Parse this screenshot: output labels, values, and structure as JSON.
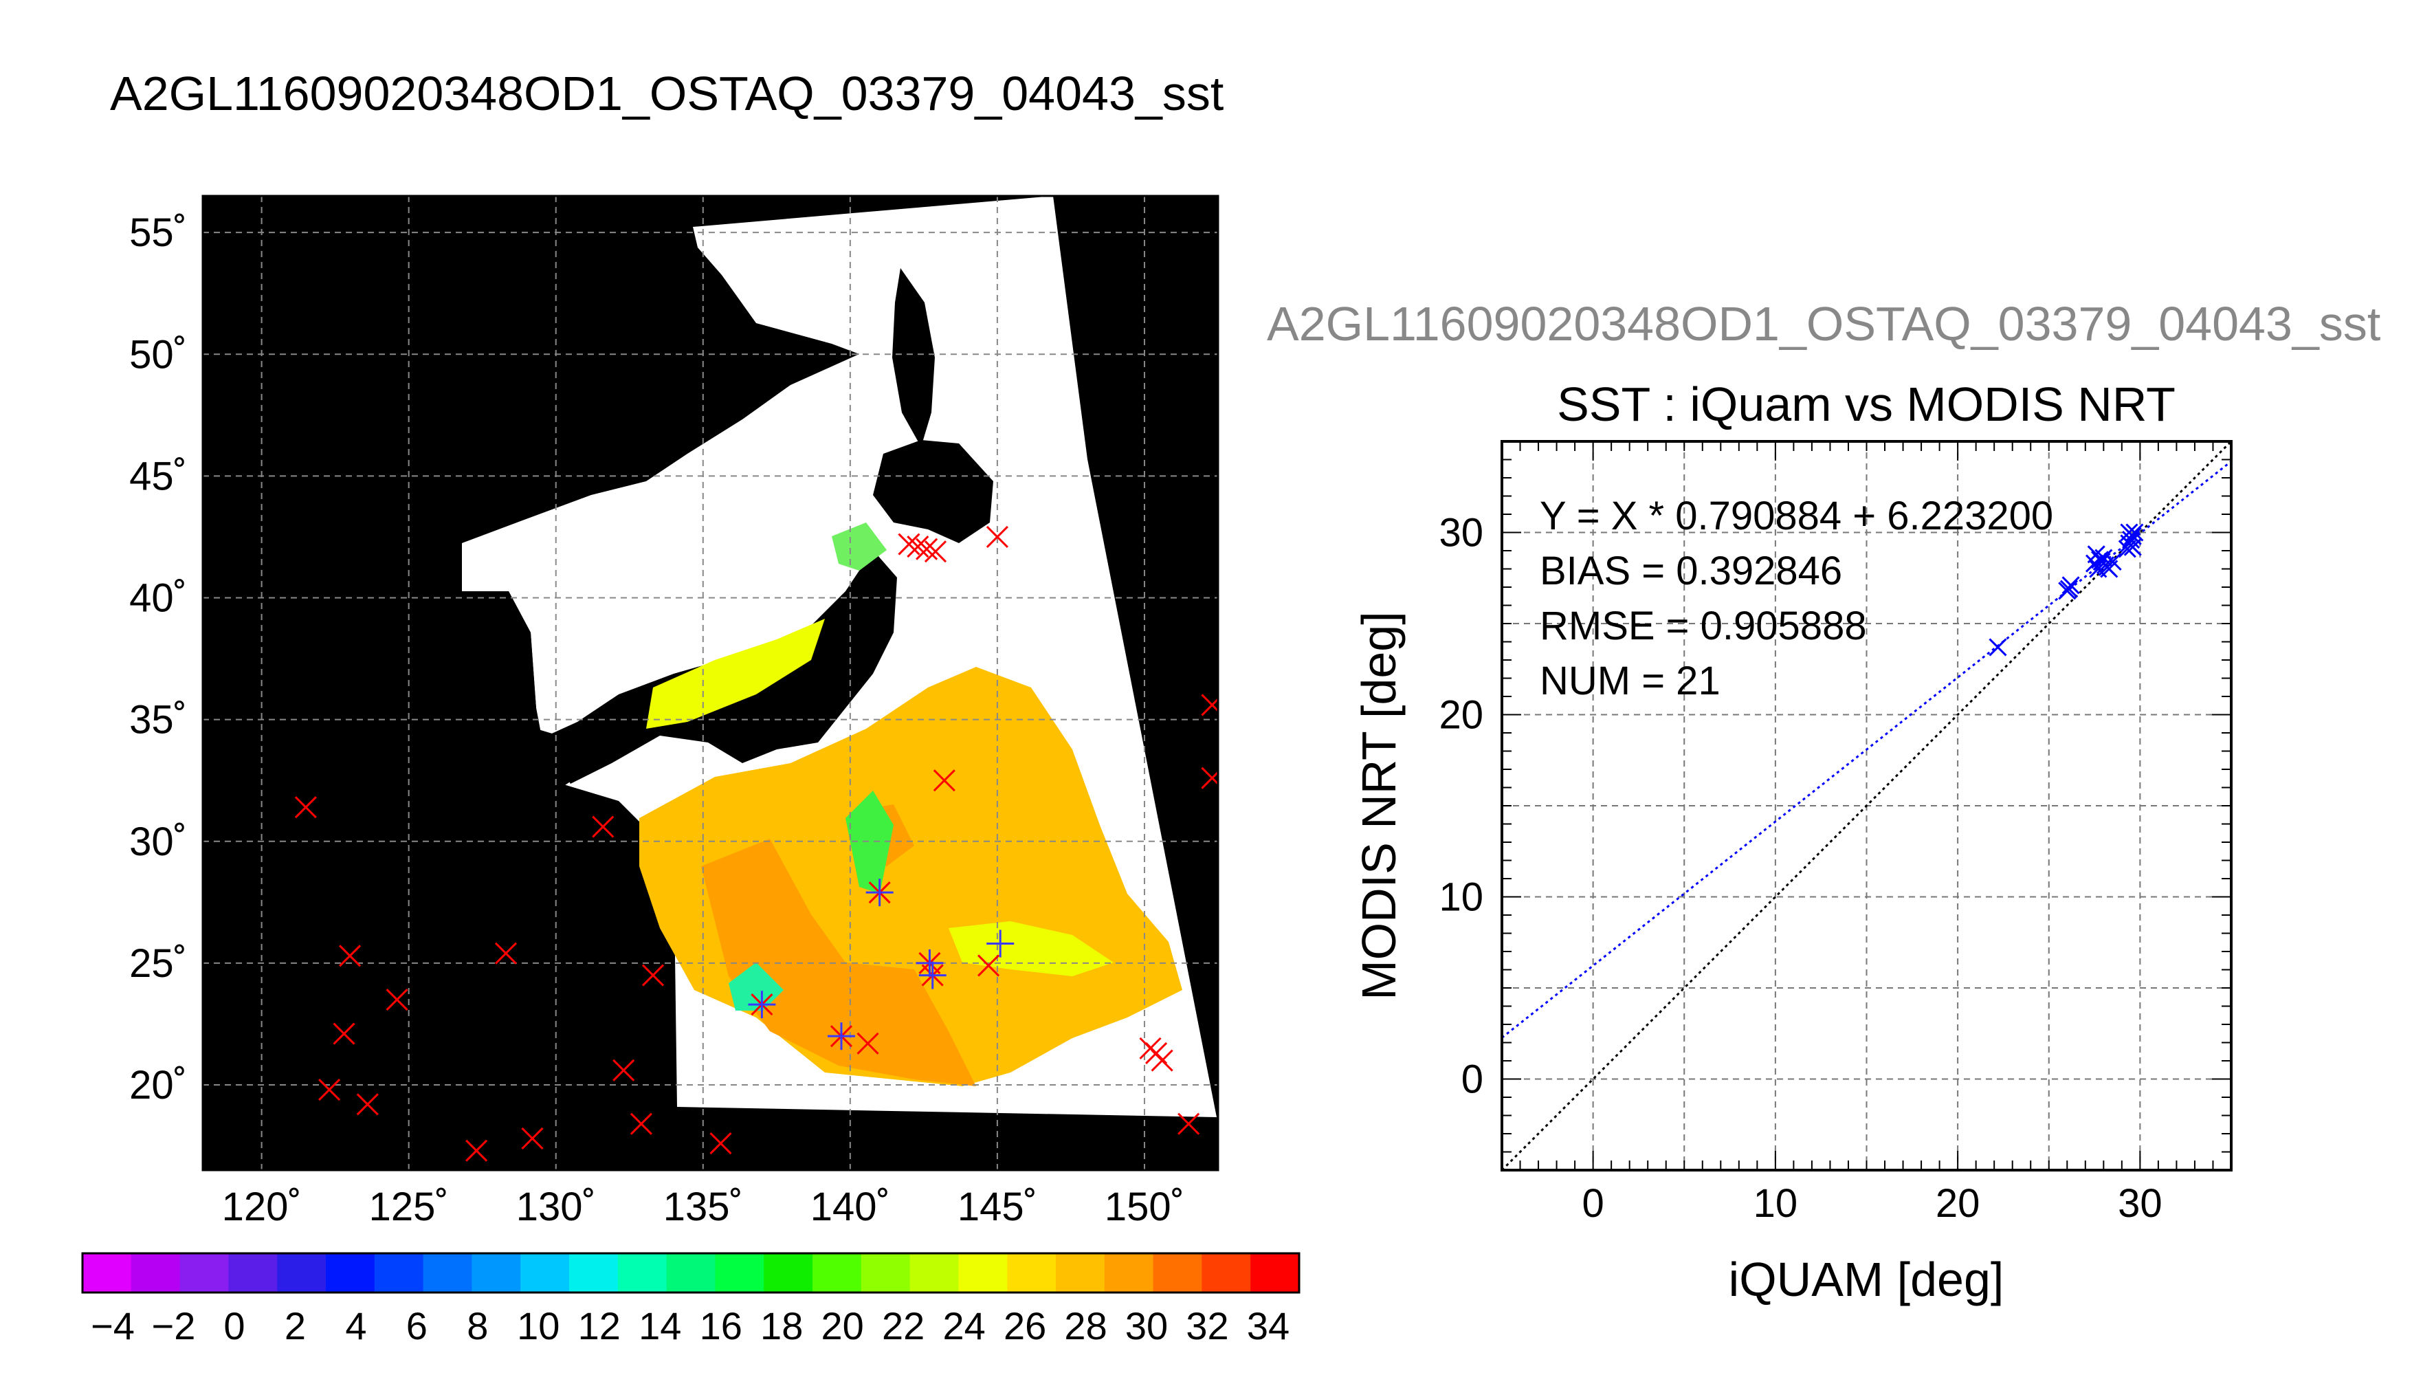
{
  "figure": {
    "title": "A2GL11609020348OD1_OSTAQ_03379_04043_sst",
    "scatter_super_title": "A2GL11609020348OD1_OSTAQ_03379_04043_sst",
    "colors": {
      "land": "#000000",
      "cloud": "#ffffff",
      "matchup_marker": "#ff0000",
      "modis_marker": "#3a3aff",
      "regression_line": "#0000ff",
      "identity_line": "#000000",
      "grid": "#888888"
    }
  },
  "map": {
    "lat_tick_labels": [
      "55˚",
      "50˚",
      "45˚",
      "40˚",
      "35˚",
      "30˚",
      "25˚",
      "20˚"
    ],
    "lon_tick_labels": [
      "120˚",
      "125˚",
      "130˚",
      "135˚",
      "140˚",
      "145˚",
      "150˚"
    ]
  },
  "colorbar": {
    "tick_labels": [
      "−4",
      "−2",
      "0",
      "2",
      "4",
      "6",
      "8",
      "10",
      "12",
      "14",
      "16",
      "18",
      "20",
      "22",
      "24",
      "26",
      "28",
      "30",
      "32",
      "34"
    ],
    "colors": [
      "#e000ff",
      "#b600f4",
      "#8a1df0",
      "#5a1ee8",
      "#2a1ee8",
      "#0018ff",
      "#0040ff",
      "#0070ff",
      "#0098ff",
      "#00c8ff",
      "#00f0ee",
      "#00ffb0",
      "#00f878",
      "#00ff40",
      "#10ee00",
      "#50ff00",
      "#90ff00",
      "#c0ff00",
      "#eeff00",
      "#ffdd00",
      "#ffc000",
      "#ffa000",
      "#ff7000",
      "#ff4000",
      "#ff0000"
    ]
  },
  "scatter": {
    "title": "SST : iQuam vs MODIS NRT",
    "xlabel": "iQUAM [deg]",
    "ylabel": "MODIS NRT [deg]",
    "x_tick_labels": [
      "0",
      "10",
      "20",
      "30"
    ],
    "y_tick_labels": [
      "0",
      "10",
      "20",
      "30"
    ],
    "stats": [
      "Y = X * 0.790884 + 6.223200",
      "BIAS = 0.392846",
      "RMSE = 0.905888",
      "NUM = 21"
    ]
  },
  "chart_data": [
    {
      "type": "scatter",
      "title": "A2GL11609020348OD1_OSTAQ_03379_04043_sst",
      "subtype": "map",
      "xlim": [
        118,
        152.5
      ],
      "ylim": [
        16.5,
        56.5
      ],
      "x_ticks": [
        120,
        125,
        130,
        135,
        140,
        145,
        150
      ],
      "y_ticks": [
        20,
        25,
        30,
        35,
        40,
        45,
        50,
        55
      ],
      "grid": true,
      "series": [
        {
          "name": "",
          "color": "#ff0000",
          "marker": "x",
          "points": [
            [
              121.5,
              31.4
            ],
            [
              123,
              25.3
            ],
            [
              122.8,
              22.1
            ],
            [
              122.3,
              19.8
            ],
            [
              123.6,
              19.2
            ],
            [
              124.6,
              23.5
            ],
            [
              127.3,
              17.3
            ],
            [
              128.3,
              25.4
            ],
            [
              129.2,
              17.8
            ],
            [
              131.6,
              30.6
            ],
            [
              132.3,
              20.6
            ],
            [
              132.9,
              18.4
            ],
            [
              133.3,
              24.5
            ],
            [
              135.6,
              17.6
            ],
            [
              137,
              23.3
            ],
            [
              139.7,
              22.0
            ],
            [
              140.6,
              21.7
            ],
            [
              141,
              27.9
            ],
            [
              142.0,
              42.2
            ],
            [
              142.3,
              42.1
            ],
            [
              142.6,
              42.0
            ],
            [
              142.9,
              41.9
            ],
            [
              143.2,
              32.5
            ],
            [
              142.8,
              24.5
            ],
            [
              142.7,
              25.0
            ],
            [
              144.7,
              24.9
            ],
            [
              145.0,
              42.5
            ],
            [
              150.2,
              21.5
            ],
            [
              150.4,
              21.3
            ],
            [
              150.6,
              21.0
            ],
            [
              151.5,
              18.4
            ],
            [
              152.3,
              35.6
            ],
            [
              152.3,
              32.6
            ]
          ]
        },
        {
          "name": "",
          "color": "#3a3aff",
          "marker": "+",
          "points": [
            [
              137,
              23.3
            ],
            [
              139.7,
              22.0
            ],
            [
              141,
              27.9
            ],
            [
              142.8,
              24.5
            ],
            [
              142.7,
              25.0
            ],
            [
              145.1,
              25.8
            ]
          ]
        }
      ]
    },
    {
      "type": "scatter",
      "title": "SST : iQuam vs MODIS NRT",
      "xlabel": "iQUAM [deg]",
      "ylabel": "MODIS NRT [deg]",
      "xlim": [
        -5,
        35
      ],
      "ylim": [
        -5,
        35
      ],
      "x_ticks": [
        0,
        10,
        20,
        30
      ],
      "y_ticks": [
        0,
        10,
        20,
        30
      ],
      "grid": true,
      "series": [
        {
          "name": "",
          "color": "#0000ff",
          "marker": "x",
          "points": [
            [
              22.2,
              23.7
            ],
            [
              26,
              26.8
            ],
            [
              26.2,
              27.1
            ],
            [
              27.5,
              28.3
            ],
            [
              27.6,
              28.8
            ],
            [
              27.8,
              28.5
            ],
            [
              28.1,
              28.2
            ],
            [
              28.3,
              28.0
            ],
            [
              28.5,
              28.4
            ],
            [
              29.4,
              29.4
            ],
            [
              29.6,
              29.8
            ],
            [
              29.7,
              30.0
            ],
            [
              29.3,
              29.1
            ],
            [
              27.7,
              28.0
            ],
            [
              28.0,
              28.6
            ],
            [
              29.5,
              29.6
            ],
            [
              26.1,
              26.9
            ],
            [
              28.2,
              28.1
            ],
            [
              29.6,
              29.2
            ],
            [
              27.9,
              28.4
            ],
            [
              29.4,
              30.0
            ]
          ]
        }
      ],
      "lines": [
        {
          "kind": "regression",
          "slope": 0.790884,
          "intercept": 6.2232,
          "color": "#0000ff",
          "style": "dotted"
        },
        {
          "kind": "identity",
          "slope": 1,
          "intercept": 0,
          "color": "#000000",
          "style": "dotted"
        }
      ]
    }
  ]
}
